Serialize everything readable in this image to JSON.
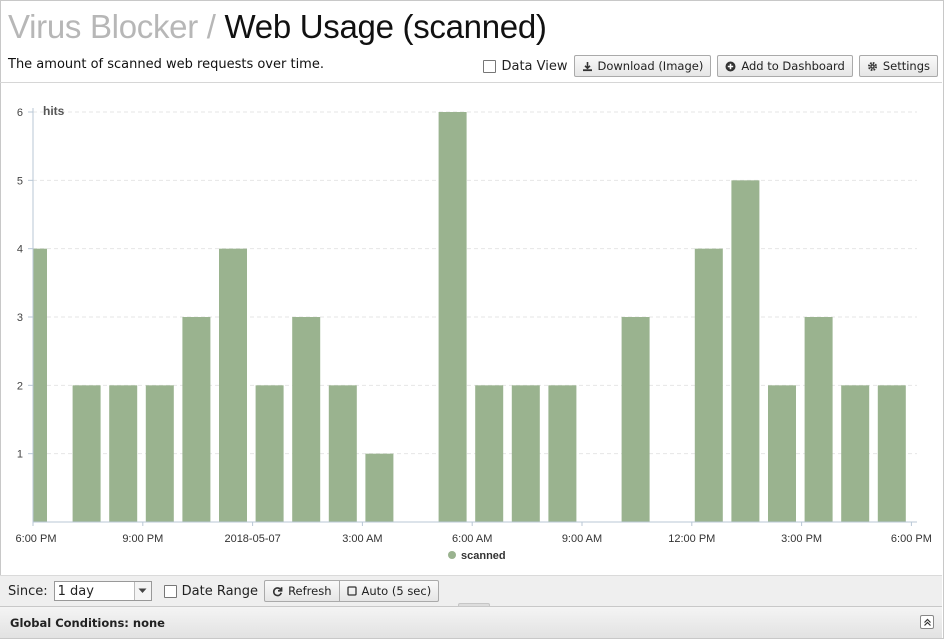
{
  "header": {
    "app_name": "Virus Blocker",
    "separator": "/",
    "report_name": "Web Usage (scanned)"
  },
  "description": "The amount of scanned web requests over time.",
  "toolbar": {
    "data_view_label": "Data View",
    "download_label": "Download (Image)",
    "add_dashboard_label": "Add to Dashboard",
    "settings_label": "Settings"
  },
  "chart_data": {
    "type": "bar",
    "ylabel": "hits",
    "ylim": [
      0,
      6
    ],
    "y_ticks": [
      "1",
      "2",
      "3",
      "4",
      "5",
      "6"
    ],
    "x_tick_labels": [
      "6:00 PM",
      "9:00 PM",
      "2018-05-07",
      "3:00 AM",
      "6:00 AM",
      "9:00 AM",
      "12:00 PM",
      "3:00 PM",
      "6:00 PM"
    ],
    "x_start": "2018-05-06 18:00",
    "interval_hours": 1,
    "series": [
      {
        "name": "scanned",
        "color": "#9ab38f",
        "values": [
          4,
          2,
          2,
          2,
          3,
          4,
          2,
          3,
          2,
          1,
          0,
          6,
          2,
          2,
          2,
          0,
          3,
          0,
          4,
          5,
          2,
          3,
          2,
          2
        ]
      }
    ],
    "legend": "bottom",
    "grid": true
  },
  "bottom": {
    "since_label": "Since:",
    "since_value": "1 day",
    "date_range_label": "Date Range",
    "refresh_label": "Refresh",
    "auto_label": "Auto (5 sec)"
  },
  "global_conditions": "Global Conditions: none"
}
